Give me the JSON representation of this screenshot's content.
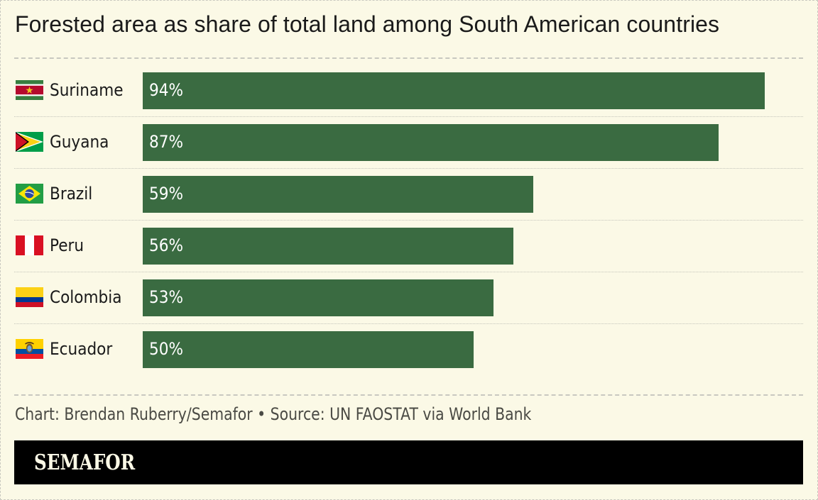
{
  "title": "Forested area as share of total land among South American countries",
  "credit": "Chart: Brendan Ruberry/Semafor • Source: UN FAOSTAT via World Bank",
  "brand": "SEMAFOR",
  "colors": {
    "bar": "#3a6b41",
    "background": "#fbf9e6",
    "brand_bg": "#000000"
  },
  "chart_data": {
    "type": "bar",
    "orientation": "horizontal",
    "title": "Forested area as share of total land among South American countries",
    "xlabel": "",
    "ylabel": "",
    "unit": "%",
    "xlim": [
      0,
      100
    ],
    "grid": false,
    "categories": [
      "Suriname",
      "Guyana",
      "Brazil",
      "Peru",
      "Colombia",
      "Ecuador"
    ],
    "values": [
      94,
      87,
      59,
      56,
      53,
      50
    ],
    "value_labels": [
      "94%",
      "87%",
      "59%",
      "56%",
      "53%",
      "50%"
    ],
    "flags": [
      "suriname-flag-icon",
      "guyana-flag-icon",
      "brazil-flag-icon",
      "peru-flag-icon",
      "colombia-flag-icon",
      "ecuador-flag-icon"
    ]
  }
}
